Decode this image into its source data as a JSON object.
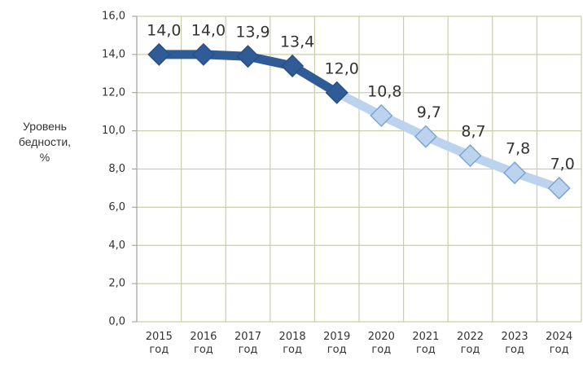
{
  "chart_data": {
    "type": "line",
    "y_label": "Уровень\nбедности,\n%",
    "categories": [
      "2015\nгод",
      "2016\nгод",
      "2017\nгод",
      "2018\nгод",
      "2019\nгод",
      "2020\nгод",
      "2021\nгод",
      "2022\nгод",
      "2023\nгод",
      "2024\nгод"
    ],
    "series": [
      {
        "color": "#bcd3ee",
        "values": [
          null,
          null,
          null,
          null,
          12.0,
          10.8,
          9.7,
          8.7,
          7.8,
          7.0
        ],
        "value_labels": [
          null,
          null,
          null,
          null,
          null,
          "10,8",
          "9,7",
          "8,7",
          "7,8",
          "7,0"
        ]
      },
      {
        "color": "#2f5b97",
        "values": [
          14.0,
          14.0,
          13.9,
          13.4,
          12.0,
          null,
          null,
          null,
          null,
          null
        ],
        "value_labels": [
          "14,0",
          "14,0",
          "13,9",
          "13,4",
          "12,0",
          null,
          null,
          null,
          null,
          null
        ]
      }
    ],
    "ylim": [
      0,
      16
    ],
    "yticks": [
      {
        "value": 0,
        "label": "0,0"
      },
      {
        "value": 2,
        "label": "2,0"
      },
      {
        "value": 4,
        "label": "4,0"
      },
      {
        "value": 6,
        "label": "6,0"
      },
      {
        "value": 8,
        "label": "8,0"
      },
      {
        "value": 10,
        "label": "10,0"
      },
      {
        "value": 12,
        "label": "12,0"
      },
      {
        "value": 14,
        "label": "14,0"
      },
      {
        "value": 16,
        "label": "16,0"
      }
    ],
    "grid": true
  }
}
